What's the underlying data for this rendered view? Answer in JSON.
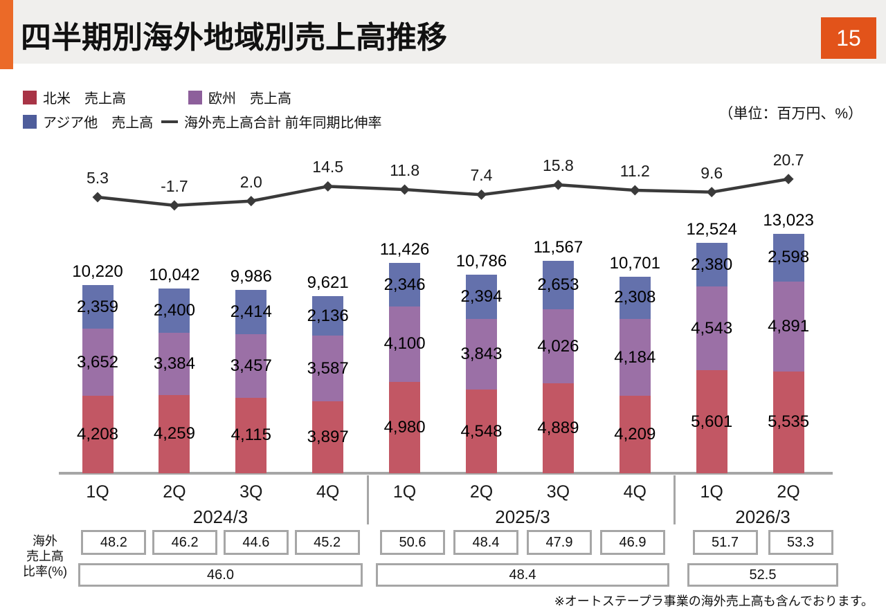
{
  "page": {
    "title": "四半期別海外地域別売上高推移",
    "page_number": "15",
    "unit_note": "（単位：百万円、%）",
    "footnote": "※オートステープラ事業の海外売上高も含んでおります。"
  },
  "legend": {
    "items": [
      {
        "label": "北米　売上高",
        "marker": "square",
        "color": "#A83446"
      },
      {
        "label": "欧州　売上高",
        "marker": "square",
        "color": "#8D5F9B"
      },
      {
        "label": "アジア他　売上高",
        "marker": "square",
        "color": "#4E5D9B"
      },
      {
        "label": "海外売上高合計 前年同期比伸率",
        "marker": "line",
        "color": "#3A3A3A"
      }
    ]
  },
  "chart_data": {
    "type": "bar",
    "subtype": "stacked-bars-with-line",
    "unit": "百万円、%",
    "categories": [
      "1Q",
      "2Q",
      "3Q",
      "4Q",
      "1Q",
      "2Q",
      "3Q",
      "4Q",
      "1Q",
      "2Q"
    ],
    "groups": [
      {
        "year": "2024/3",
        "count": 4
      },
      {
        "year": "2025/3",
        "count": 4
      },
      {
        "year": "2026/3",
        "count": 2
      }
    ],
    "series": [
      {
        "name": "北米 売上高",
        "color": "#C25764",
        "values": [
          4208,
          4259,
          4115,
          3897,
          4980,
          4548,
          4889,
          4209,
          5601,
          5535
        ]
      },
      {
        "name": "欧州 売上高",
        "color": "#9B70A6",
        "values": [
          3652,
          3384,
          3457,
          3587,
          4100,
          3843,
          4026,
          4184,
          4543,
          4891
        ]
      },
      {
        "name": "アジア他 売上高",
        "color": "#6471AC",
        "values": [
          2359,
          2400,
          2414,
          2136,
          2346,
          2394,
          2653,
          2308,
          2380,
          2598
        ]
      }
    ],
    "totals": [
      10220,
      10042,
      9986,
      9621,
      11426,
      10786,
      11567,
      10701,
      12524,
      13023
    ],
    "line_series": {
      "name": "海外売上高合計 前年同期比伸率",
      "color": "#3A3A3A",
      "values": [
        5.3,
        -1.7,
        2.0,
        14.5,
        11.8,
        7.4,
        15.8,
        11.2,
        9.6,
        20.7
      ]
    },
    "ratio_table": {
      "row_label": "海外売上高比率(%)",
      "row_label_lines": [
        "海外",
        "売上高",
        "比率(%)"
      ],
      "quarterly": [
        48.2,
        46.2,
        44.6,
        45.2,
        50.6,
        48.4,
        47.9,
        46.9,
        51.7,
        53.3
      ],
      "annual": [
        46.0,
        48.4,
        52.5
      ]
    }
  }
}
